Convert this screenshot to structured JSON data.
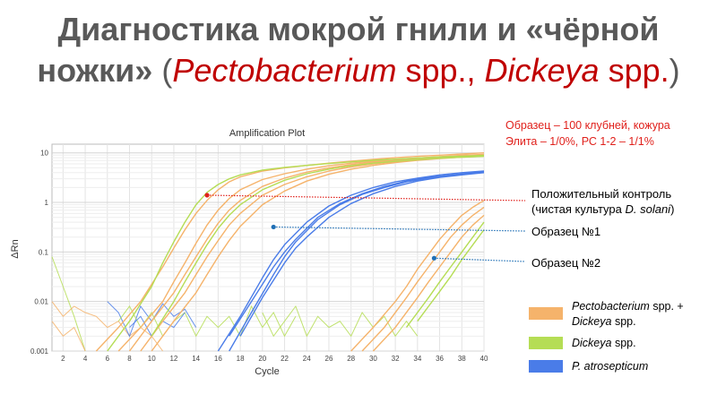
{
  "title": {
    "line1": "Диагностика мокрой гнили и «чёрной",
    "line2_a": "ножки»",
    "line2_b": " (",
    "line2_c": "Pectobacterium",
    "line2_d": " spp., ",
    "line2_e": "Dickeya",
    "line2_f": " spp.",
    "line2_g": ")"
  },
  "sample_note": {
    "line1": "Образец – 100 клубней, кожура",
    "line2": "Элита – 1/0%, РС 1-2 – 1/1%"
  },
  "annotations": {
    "positive_line1": "Положительный контроль",
    "positive_line2_a": "(чистая культура ",
    "positive_line2_b": "D. solani",
    "positive_line2_c": ")",
    "sample1": "Образец №1",
    "sample2": "Образец №2"
  },
  "legend": {
    "item1_a": "Pectobacterium",
    "item1_b": " spp. +",
    "item1_c": "Dickeya",
    "item1_d": " spp.",
    "item2_a": "Dickeya",
    "item2_b": " spp.",
    "item3": "P. atrosepticum"
  },
  "colors": {
    "orange": "#f5b36b",
    "green": "#b5dd55",
    "blue": "#4a7ce8",
    "red_marker": "#e0201b",
    "blue_marker": "#1f6fb5"
  },
  "chart_data": {
    "type": "line",
    "title": "Amplification Plot",
    "xlabel": "Cycle",
    "ylabel": "ΔRn",
    "yscale": "log",
    "xlim": [
      1,
      40
    ],
    "ylim": [
      0.001,
      15
    ],
    "xticks": [
      "2",
      "4",
      "6",
      "8",
      "10",
      "12",
      "14",
      "16",
      "18",
      "20",
      "22",
      "24",
      "26",
      "28",
      "30",
      "32",
      "34",
      "36",
      "38",
      "40"
    ],
    "yticks": [
      "0.001",
      "0.01",
      "0.1",
      "1",
      "10"
    ],
    "grid": true,
    "legend_position": "right",
    "series": [
      {
        "group": "orange",
        "x": [
          5,
          7,
          9,
          11,
          12,
          13,
          14,
          15,
          16,
          17,
          18,
          20,
          22,
          24,
          26,
          28,
          30,
          32,
          34,
          36,
          38,
          40
        ],
        "y": [
          0.001,
          0.003,
          0.01,
          0.05,
          0.12,
          0.28,
          0.6,
          1.1,
          1.8,
          2.6,
          3.3,
          4.3,
          5.0,
          5.6,
          6.2,
          6.8,
          7.4,
          8.0,
          8.5,
          9.0,
          9.5,
          10
        ]
      },
      {
        "group": "orange",
        "x": [
          7,
          9,
          11,
          12,
          13,
          14,
          15,
          16,
          17,
          18,
          20,
          22,
          24,
          26,
          28,
          30,
          32,
          34,
          36,
          38,
          40
        ],
        "y": [
          0.001,
          0.003,
          0.01,
          0.025,
          0.06,
          0.15,
          0.35,
          0.7,
          1.2,
          1.8,
          2.9,
          3.8,
          4.7,
          5.5,
          6.2,
          6.8,
          7.4,
          7.9,
          8.4,
          8.9,
          9.3
        ]
      },
      {
        "group": "orange",
        "x": [
          8,
          10,
          12,
          13,
          14,
          15,
          16,
          17,
          18,
          20,
          22,
          24,
          26,
          28,
          30,
          32,
          34,
          36,
          38,
          40
        ],
        "y": [
          0.001,
          0.004,
          0.015,
          0.035,
          0.08,
          0.18,
          0.38,
          0.7,
          1.1,
          2.1,
          3.1,
          4.1,
          5.0,
          5.8,
          6.5,
          7.1,
          7.6,
          8.1,
          8.5,
          8.9
        ]
      },
      {
        "group": "orange",
        "x": [
          9,
          11,
          13,
          14,
          15,
          16,
          17,
          18,
          20,
          22,
          24,
          26,
          28,
          30,
          32,
          34,
          36,
          38,
          40
        ],
        "y": [
          0.001,
          0.004,
          0.015,
          0.035,
          0.08,
          0.17,
          0.35,
          0.6,
          1.4,
          2.3,
          3.3,
          4.3,
          5.2,
          6.0,
          6.7,
          7.3,
          7.8,
          8.3,
          8.7
        ]
      },
      {
        "group": "orange",
        "x": [
          10,
          12,
          14,
          15,
          16,
          17,
          18,
          20,
          22,
          24,
          26,
          28,
          30,
          32,
          34,
          36,
          38,
          40
        ],
        "y": [
          0.001,
          0.004,
          0.015,
          0.035,
          0.08,
          0.17,
          0.33,
          0.9,
          1.7,
          2.7,
          3.7,
          4.7,
          5.6,
          6.4,
          7.1,
          7.7,
          8.2,
          8.6
        ]
      },
      {
        "group": "orange",
        "x": [
          28,
          30,
          32,
          33,
          34,
          35,
          36,
          37,
          38,
          39,
          40
        ],
        "y": [
          0.001,
          0.003,
          0.01,
          0.02,
          0.045,
          0.09,
          0.18,
          0.32,
          0.55,
          0.8,
          1.1
        ]
      },
      {
        "group": "orange",
        "x": [
          29,
          31,
          33,
          34,
          35,
          36,
          37,
          38,
          39,
          40
        ],
        "y": [
          0.001,
          0.003,
          0.012,
          0.025,
          0.05,
          0.1,
          0.2,
          0.35,
          0.55,
          0.8
        ]
      },
      {
        "group": "orange",
        "x": [
          30,
          32,
          34,
          35,
          36,
          37,
          38,
          39,
          40
        ],
        "y": [
          0.001,
          0.003,
          0.012,
          0.025,
          0.05,
          0.1,
          0.2,
          0.35,
          0.55
        ]
      },
      {
        "group": "green",
        "x": [
          6,
          8,
          10,
          11,
          12,
          13,
          14,
          15,
          16,
          17,
          18,
          20,
          22,
          24,
          26,
          28,
          30,
          32,
          34,
          36,
          38,
          40
        ],
        "y": [
          0.001,
          0.004,
          0.02,
          0.06,
          0.16,
          0.4,
          0.9,
          1.6,
          2.3,
          3.0,
          3.6,
          4.5,
          5.1,
          5.6,
          6.1,
          6.6,
          7.1,
          7.5,
          7.9,
          8.3,
          8.6,
          8.9
        ]
      },
      {
        "group": "green",
        "x": [
          10,
          12,
          13,
          14,
          15,
          16,
          17,
          18,
          20,
          22,
          24,
          26,
          28,
          30,
          32,
          34,
          36,
          38,
          40
        ],
        "y": [
          0.002,
          0.01,
          0.025,
          0.06,
          0.14,
          0.3,
          0.55,
          0.9,
          1.8,
          2.8,
          3.8,
          4.7,
          5.5,
          6.2,
          6.8,
          7.3,
          7.8,
          8.2,
          8.5
        ]
      },
      {
        "group": "green",
        "x": [
          33,
          34,
          35,
          36,
          37,
          38,
          39,
          40
        ],
        "y": [
          0.003,
          0.006,
          0.012,
          0.025,
          0.05,
          0.1,
          0.2,
          0.4
        ]
      },
      {
        "group": "green",
        "x": [
          34,
          35,
          36,
          37,
          38,
          39,
          40
        ],
        "y": [
          0.004,
          0.008,
          0.016,
          0.032,
          0.07,
          0.14,
          0.28
        ]
      },
      {
        "group": "blue",
        "x": [
          16,
          18,
          20,
          21,
          22,
          24,
          26,
          28,
          30,
          32,
          34,
          36,
          38,
          40
        ],
        "y": [
          0.001,
          0.005,
          0.03,
          0.07,
          0.14,
          0.4,
          0.85,
          1.4,
          2.0,
          2.6,
          3.1,
          3.6,
          4.0,
          4.3
        ]
      },
      {
        "group": "blue",
        "x": [
          17,
          19,
          21,
          22,
          23,
          25,
          27,
          29,
          31,
          33,
          35,
          37,
          39,
          40
        ],
        "y": [
          0.001,
          0.006,
          0.035,
          0.08,
          0.16,
          0.45,
          0.9,
          1.45,
          2.0,
          2.6,
          3.1,
          3.5,
          3.9,
          4.1
        ]
      },
      {
        "group": "blue",
        "x": [
          17,
          19,
          21,
          22,
          23,
          25,
          27,
          29,
          31,
          33,
          35,
          37,
          40
        ],
        "y": [
          0.002,
          0.01,
          0.05,
          0.1,
          0.18,
          0.5,
          0.95,
          1.5,
          2.1,
          2.7,
          3.2,
          3.6,
          4.2
        ]
      },
      {
        "group": "blue",
        "x": [
          18,
          20,
          22,
          23,
          24,
          26,
          28,
          30,
          32,
          34,
          36,
          38,
          40
        ],
        "y": [
          0.002,
          0.012,
          0.06,
          0.12,
          0.2,
          0.5,
          0.95,
          1.5,
          2.1,
          2.7,
          3.2,
          3.6,
          4.0
        ]
      }
    ],
    "markers": [
      {
        "name": "positive-control-marker",
        "x": 15,
        "y": 1.4,
        "color": "#e0201b"
      },
      {
        "name": "sample-1-marker",
        "x": 21,
        "y": 0.32,
        "color": "#1f6fb5"
      },
      {
        "name": "sample-2-marker",
        "x": 35.5,
        "y": 0.075,
        "color": "#1f6fb5"
      }
    ]
  }
}
